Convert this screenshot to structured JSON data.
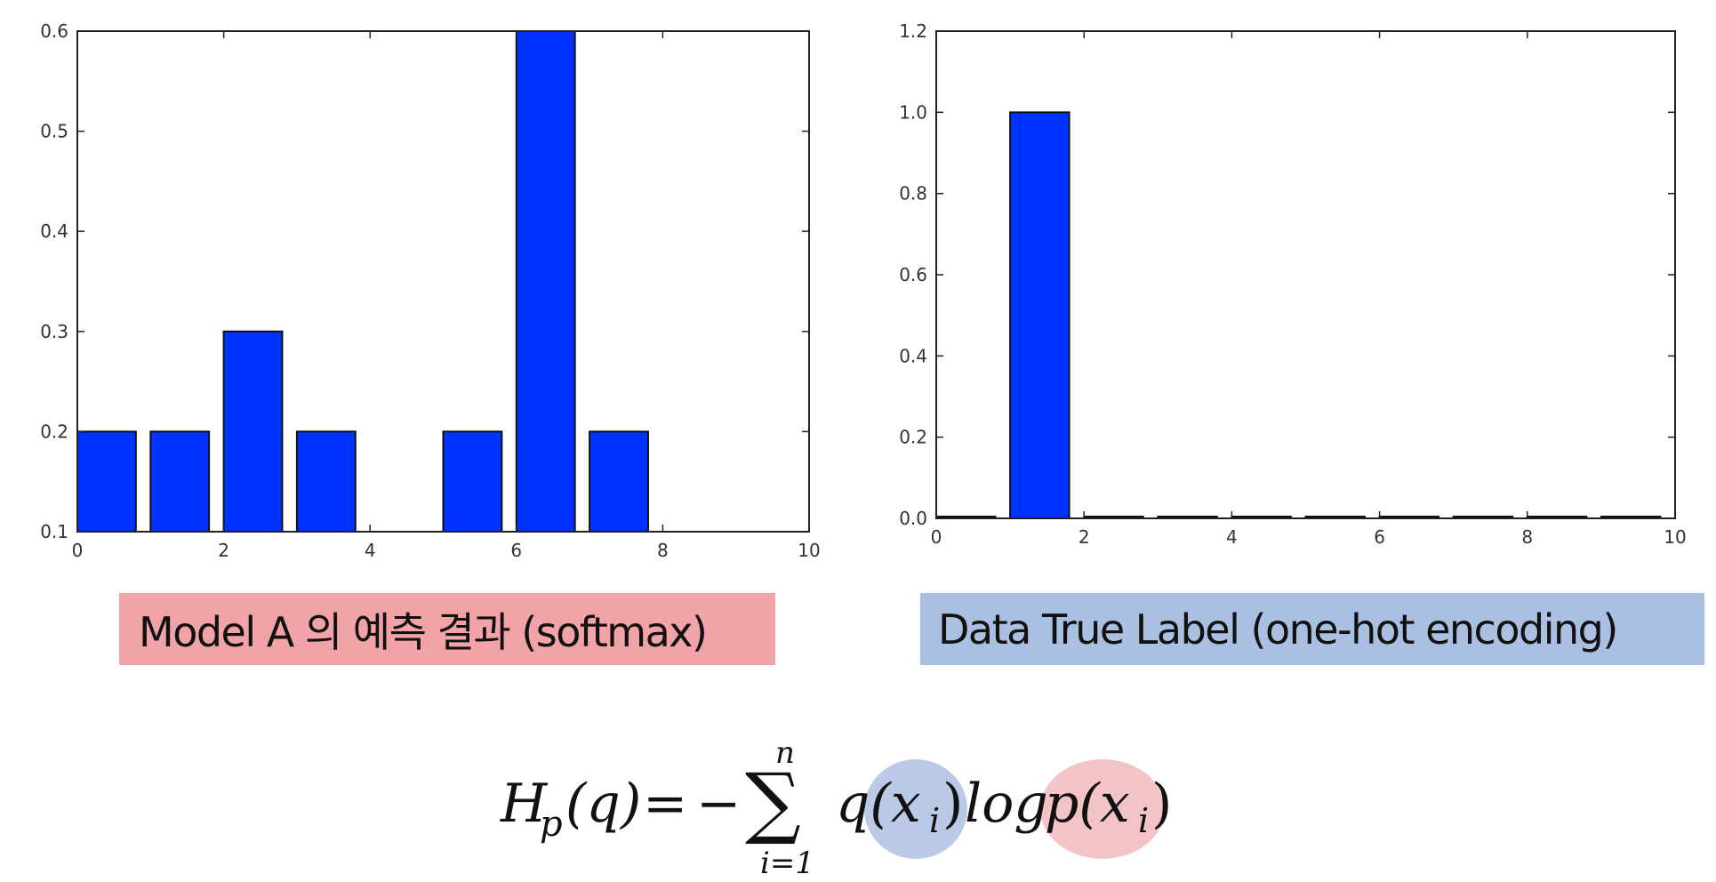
{
  "chart_data": [
    {
      "type": "bar",
      "x": [
        0,
        1,
        2,
        3,
        5,
        6,
        7
      ],
      "values": [
        0.2,
        0.2,
        0.3,
        0.2,
        0.2,
        0.6,
        0.2
      ],
      "bar_width": 0.8,
      "xlim": [
        0,
        10
      ],
      "ylim": [
        0.1,
        0.6
      ],
      "xticks": [
        "0",
        "2",
        "4",
        "6",
        "8",
        "10"
      ],
      "yticks": [
        "0.1",
        "0.2",
        "0.3",
        "0.4",
        "0.5",
        "0.6"
      ],
      "bar_color": "#0033ff",
      "caption": "Model A 의 예측 결과 (softmax)",
      "caption_bg": "#f2a3a8"
    },
    {
      "type": "bar",
      "x": [
        0,
        1,
        2,
        3,
        4,
        5,
        6,
        7,
        8,
        9
      ],
      "values": [
        0,
        1.0,
        0,
        0,
        0,
        0,
        0,
        0,
        0,
        0
      ],
      "bar_width": 0.8,
      "xlim": [
        0,
        10
      ],
      "ylim": [
        0.0,
        1.2
      ],
      "xticks": [
        "0",
        "2",
        "4",
        "6",
        "8",
        "10"
      ],
      "yticks": [
        "0.0",
        "0.2",
        "0.4",
        "0.6",
        "0.8",
        "1.0",
        "1.2"
      ],
      "bar_color": "#0033ff",
      "caption": "Data True Label (one-hot encoding)",
      "caption_bg": "#a9c0e3"
    }
  ],
  "formula": {
    "H": "H",
    "p_sub": "p",
    "q_arg": "(q)",
    "equals": "=",
    "minus": "−",
    "sigma": "∑",
    "upper": "n",
    "lower": "i=1",
    "q_term": "q(x",
    "i_sub": "i",
    "close": ")",
    "log": "log",
    "p_term": "p(x",
    "q_highlight_color": "#b9c9e6",
    "p_highlight_color": "#f2c4c8"
  }
}
